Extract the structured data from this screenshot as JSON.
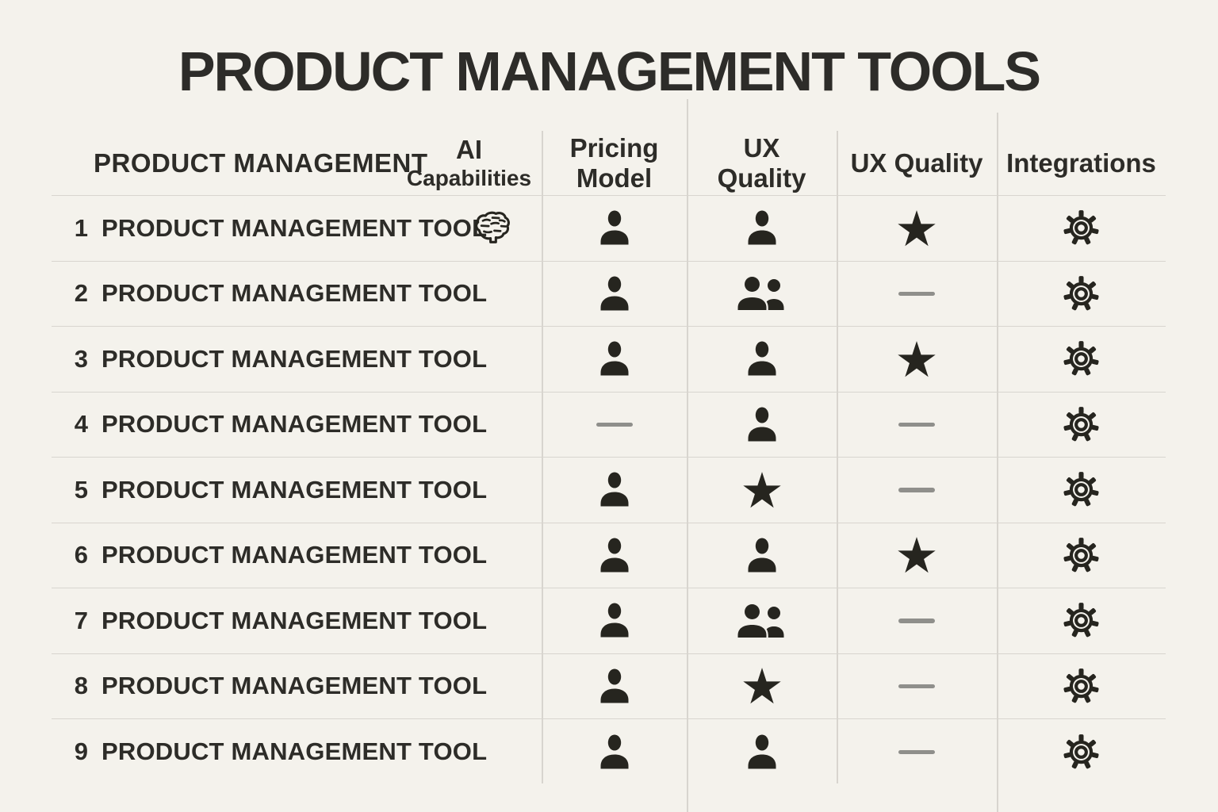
{
  "page": {
    "title": "PRODUCT MANAGEMENT TOOLS"
  },
  "colors": {
    "bg": "#f4f2ec",
    "ink": "#2d2c28",
    "icon": "#26251f",
    "grid": "#d8d5cf",
    "dash": "#8f8f8b"
  },
  "table": {
    "columns": [
      {
        "label": "PRODUCT MANAGEMENT"
      },
      {
        "line1": "AI",
        "line2": "Capabilities"
      },
      {
        "line1": "Pricing",
        "line2": "Model"
      },
      {
        "line1": "UX",
        "line2": "Quality"
      },
      {
        "label": "UX Quality"
      },
      {
        "label": "Integrations"
      }
    ],
    "rows": [
      {
        "num": "1",
        "label": "PRODUCT MANAGEMENT TOOL",
        "cells": {
          "ai": "brain",
          "pricing": "person",
          "ux": "person",
          "ux2": "star",
          "integrations": "gear"
        }
      },
      {
        "num": "2",
        "label": "PRODUCT MANAGEMENT TOOL",
        "cells": {
          "ai": "",
          "pricing": "person",
          "ux": "people",
          "ux2": "dash",
          "integrations": "gear"
        }
      },
      {
        "num": "3",
        "label": "PRODUCT MANAGEMENT TOOL",
        "cells": {
          "ai": "",
          "pricing": "person",
          "ux": "person",
          "ux2": "star",
          "integrations": "gear"
        }
      },
      {
        "num": "4",
        "label": "PRODUCT MANAGEMENT TOOL",
        "cells": {
          "ai": "",
          "pricing": "dash",
          "ux": "person",
          "ux2": "dash",
          "integrations": "gear"
        }
      },
      {
        "num": "5",
        "label": "PRODUCT MANAGEMENT TOOL",
        "cells": {
          "ai": "",
          "pricing": "person",
          "ux": "star",
          "ux2": "dash",
          "integrations": "gear"
        }
      },
      {
        "num": "6",
        "label": "PRODUCT MANAGEMENT TOOL",
        "cells": {
          "ai": "",
          "pricing": "person",
          "ux": "person",
          "ux2": "star",
          "integrations": "gear"
        }
      },
      {
        "num": "7",
        "label": "PRODUCT MANAGEMENT TOOL",
        "cells": {
          "ai": "",
          "pricing": "person",
          "ux": "people",
          "ux2": "dash",
          "integrations": "gear"
        }
      },
      {
        "num": "8",
        "label": "PRODUCT MANAGEMENT TOOL",
        "cells": {
          "ai": "",
          "pricing": "person",
          "ux": "star",
          "ux2": "dash",
          "integrations": "gear"
        }
      },
      {
        "num": "9",
        "label": "PRODUCT MANAGEMENT TOOL",
        "cells": {
          "ai": "",
          "pricing": "person",
          "ux": "person",
          "ux2": "dash",
          "integrations": "gear"
        }
      }
    ]
  },
  "chart_data": {
    "type": "table",
    "title": "PRODUCT MANAGEMENT TOOLS",
    "columns": [
      "PRODUCT MANAGEMENT",
      "AI Capabilities",
      "Pricing Model",
      "UX Quality",
      "UX Quality",
      "Integrations"
    ],
    "rows": [
      [
        "1 PRODUCT MANAGEMENT TOOL",
        "brain",
        "person",
        "person",
        "star",
        "gear"
      ],
      [
        "2 PRODUCT MANAGEMENT TOOL",
        "",
        "person",
        "people",
        "dash",
        "gear"
      ],
      [
        "3 PRODUCT MANAGEMENT TOOL",
        "",
        "person",
        "person",
        "star",
        "gear"
      ],
      [
        "4 PRODUCT MANAGEMENT TOOL",
        "",
        "dash",
        "person",
        "dash",
        "gear"
      ],
      [
        "5 PRODUCT MANAGEMENT TOOL",
        "",
        "person",
        "star",
        "dash",
        "gear"
      ],
      [
        "6 PRODUCT MANAGEMENT TOOL",
        "",
        "person",
        "person",
        "star",
        "gear"
      ],
      [
        "7 PRODUCT MANAGEMENT TOOL",
        "",
        "person",
        "people",
        "dash",
        "gear"
      ],
      [
        "8 PRODUCT MANAGEMENT TOOL",
        "",
        "person",
        "star",
        "dash",
        "gear"
      ],
      [
        "9 PRODUCT MANAGEMENT TOOL",
        "",
        "person",
        "person",
        "dash",
        "gear"
      ]
    ],
    "icon_legend": {
      "person": "single user glyph",
      "people": "double user glyph",
      "star": "filled star",
      "dash": "gray dash (none)",
      "gear": "outlined gear",
      "brain": "outlined brain (AI)"
    }
  }
}
